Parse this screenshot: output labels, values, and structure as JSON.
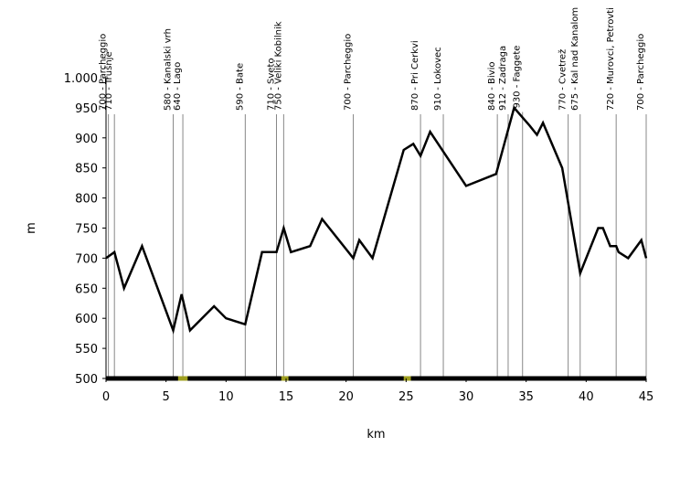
{
  "chart_data": {
    "type": "line",
    "title": "",
    "xlabel": "km",
    "ylabel": "m",
    "xlim": [
      0,
      45
    ],
    "ylim": [
      500,
      1000
    ],
    "grid": false,
    "x_ticks": [
      "0",
      "5",
      "10",
      "15",
      "20",
      "25",
      "30",
      "35",
      "40",
      "45"
    ],
    "y_ticks": [
      "500",
      "550",
      "600",
      "650",
      "700",
      "750",
      "800",
      "850",
      "900",
      "950",
      "1.000"
    ],
    "series": [
      {
        "points": [
          [
            0,
            700
          ],
          [
            0.7,
            710
          ],
          [
            1.5,
            650
          ],
          [
            3,
            720
          ],
          [
            5.6,
            580
          ],
          [
            6.3,
            640
          ],
          [
            7,
            580
          ],
          [
            9,
            620
          ],
          [
            10,
            600
          ],
          [
            11.6,
            590
          ],
          [
            13,
            710
          ],
          [
            14.2,
            710
          ],
          [
            14.8,
            750
          ],
          [
            15.4,
            710
          ],
          [
            17,
            720
          ],
          [
            18,
            765
          ],
          [
            20.6,
            700
          ],
          [
            21.1,
            730
          ],
          [
            22.2,
            700
          ],
          [
            24.8,
            880
          ],
          [
            25.6,
            890
          ],
          [
            26.2,
            870
          ],
          [
            27,
            910
          ],
          [
            30,
            820
          ],
          [
            32.5,
            840
          ],
          [
            34,
            950
          ],
          [
            35.3,
            920
          ],
          [
            35.9,
            905
          ],
          [
            36.4,
            925
          ],
          [
            38,
            850
          ],
          [
            39.5,
            675
          ],
          [
            41,
            750
          ],
          [
            41.4,
            750
          ],
          [
            42,
            720
          ],
          [
            42.5,
            720
          ],
          [
            42.7,
            710
          ],
          [
            43.5,
            700
          ],
          [
            44.6,
            730
          ],
          [
            45,
            700
          ]
        ]
      }
    ],
    "waypoints": [
      {
        "km": 0.2,
        "label": "700 - Parcheggio"
      },
      {
        "km": 0.7,
        "label": "710 - Trušnje"
      },
      {
        "km": 5.6,
        "label": "580 - Kanalski vrh"
      },
      {
        "km": 6.4,
        "label": "640 - Lago"
      },
      {
        "km": 11.6,
        "label": "590 - Bate"
      },
      {
        "km": 14.2,
        "label": "710 - Sveto"
      },
      {
        "km": 14.8,
        "label": "750 - Veliki Kobilnik"
      },
      {
        "km": 20.6,
        "label": "700 - Parcheggio"
      },
      {
        "km": 26.2,
        "label": "870 - Pri Cerkvi"
      },
      {
        "km": 28.1,
        "label": "910 - Lokovec"
      },
      {
        "km": 32.6,
        "label": "840 - Bivio"
      },
      {
        "km": 33.5,
        "label": "912 - Zadraga"
      },
      {
        "km": 34.7,
        "label": "930 - Faggete"
      },
      {
        "km": 38.5,
        "label": "770 - Cvetrež"
      },
      {
        "km": 39.5,
        "label": "675 - Kal nad Kanalom"
      },
      {
        "km": 42.5,
        "label": "720 - Murovci, Petrovti"
      },
      {
        "km": 45,
        "label": "700 - Parcheggio"
      }
    ],
    "baseline_markers_km": [
      [
        6.0,
        6.8
      ],
      [
        14.6,
        15.2
      ],
      [
        24.8,
        25.4
      ]
    ],
    "colors": {
      "line": "#000000",
      "baseline": "#000000",
      "marker": "#a0a020",
      "waypoint_line": "#888888"
    }
  }
}
